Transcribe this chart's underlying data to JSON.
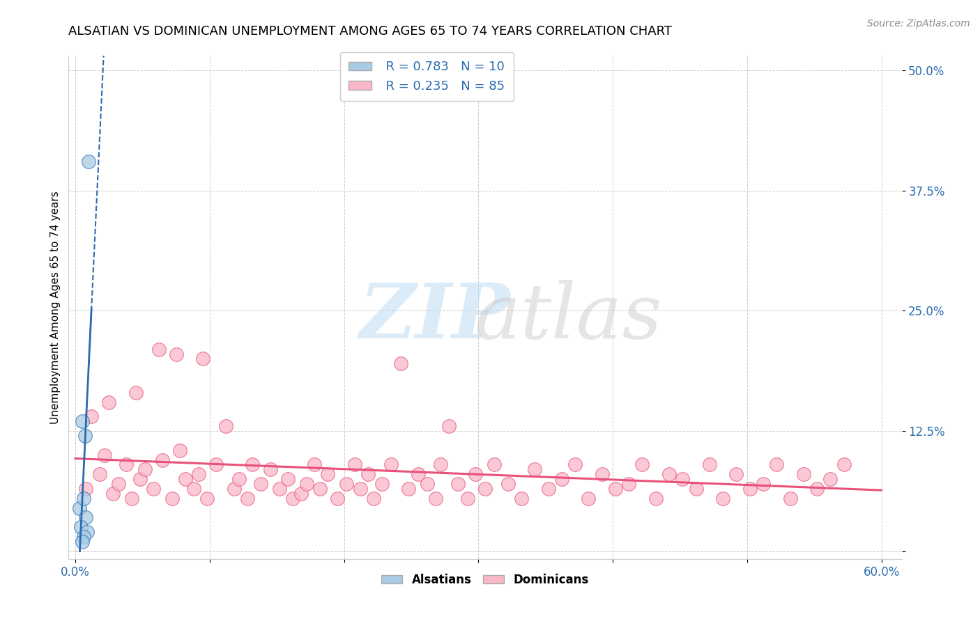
{
  "title": "ALSATIAN VS DOMINICAN UNEMPLOYMENT AMONG AGES 65 TO 74 YEARS CORRELATION CHART",
  "source": "Source: ZipAtlas.com",
  "ylabel": "Unemployment Among Ages 65 to 74 years",
  "xlim": [
    0.0,
    0.6
  ],
  "ylim": [
    0.0,
    0.5
  ],
  "xtick_show": [
    0.0,
    0.6
  ],
  "xticklabels_show": [
    "0.0%",
    "60.0%"
  ],
  "yticks": [
    0.0,
    0.125,
    0.25,
    0.375,
    0.5
  ],
  "yticklabels": [
    "",
    "12.5%",
    "25.0%",
    "37.5%",
    "50.0%"
  ],
  "alsatian_color": "#a8cce4",
  "dominican_color": "#f9b8c8",
  "alsatian_line_color": "#2b6cb0",
  "dominican_line_color": "#e8517a",
  "R_alsatian": 0.783,
  "N_alsatian": 10,
  "R_dominican": 0.235,
  "N_dominican": 85,
  "legend_label_alsatian": "Alsatians",
  "legend_label_dominican": "Dominicans",
  "legend_R_alsatian": "R = 0.783",
  "legend_N_alsatian": "N = 10",
  "legend_R_dominican": "R = 0.235",
  "legend_N_dominican": "N = 85",
  "alsatian_x": [
    0.01,
    0.005,
    0.007,
    0.003,
    0.006,
    0.008,
    0.004,
    0.009,
    0.006,
    0.005
  ],
  "alsatian_y": [
    0.405,
    0.135,
    0.12,
    0.045,
    0.055,
    0.035,
    0.025,
    0.02,
    0.015,
    0.01
  ],
  "dominican_x": [
    0.008,
    0.012,
    0.018,
    0.022,
    0.028,
    0.032,
    0.038,
    0.042,
    0.048,
    0.052,
    0.058,
    0.065,
    0.072,
    0.078,
    0.082,
    0.088,
    0.092,
    0.098,
    0.105,
    0.112,
    0.118,
    0.122,
    0.128,
    0.132,
    0.138,
    0.145,
    0.152,
    0.158,
    0.162,
    0.168,
    0.172,
    0.178,
    0.182,
    0.188,
    0.195,
    0.202,
    0.208,
    0.212,
    0.218,
    0.222,
    0.228,
    0.235,
    0.242,
    0.248,
    0.255,
    0.262,
    0.268,
    0.272,
    0.278,
    0.285,
    0.292,
    0.298,
    0.305,
    0.312,
    0.322,
    0.332,
    0.342,
    0.352,
    0.362,
    0.372,
    0.382,
    0.392,
    0.402,
    0.412,
    0.422,
    0.432,
    0.442,
    0.452,
    0.462,
    0.472,
    0.482,
    0.492,
    0.502,
    0.512,
    0.522,
    0.532,
    0.542,
    0.552,
    0.562,
    0.572,
    0.025,
    0.045,
    0.062,
    0.075,
    0.095
  ],
  "dominican_y": [
    0.065,
    0.14,
    0.08,
    0.1,
    0.06,
    0.07,
    0.09,
    0.055,
    0.075,
    0.085,
    0.065,
    0.095,
    0.055,
    0.105,
    0.075,
    0.065,
    0.08,
    0.055,
    0.09,
    0.13,
    0.065,
    0.075,
    0.055,
    0.09,
    0.07,
    0.085,
    0.065,
    0.075,
    0.055,
    0.06,
    0.07,
    0.09,
    0.065,
    0.08,
    0.055,
    0.07,
    0.09,
    0.065,
    0.08,
    0.055,
    0.07,
    0.09,
    0.195,
    0.065,
    0.08,
    0.07,
    0.055,
    0.09,
    0.13,
    0.07,
    0.055,
    0.08,
    0.065,
    0.09,
    0.07,
    0.055,
    0.085,
    0.065,
    0.075,
    0.09,
    0.055,
    0.08,
    0.065,
    0.07,
    0.09,
    0.055,
    0.08,
    0.075,
    0.065,
    0.09,
    0.055,
    0.08,
    0.065,
    0.07,
    0.09,
    0.055,
    0.08,
    0.065,
    0.075,
    0.09,
    0.155,
    0.165,
    0.21,
    0.205,
    0.2
  ],
  "grid_color": "#cccccc",
  "title_fontsize": 13,
  "tick_fontsize": 12,
  "ylabel_fontsize": 11,
  "source_fontsize": 10,
  "legend_fontsize": 13
}
